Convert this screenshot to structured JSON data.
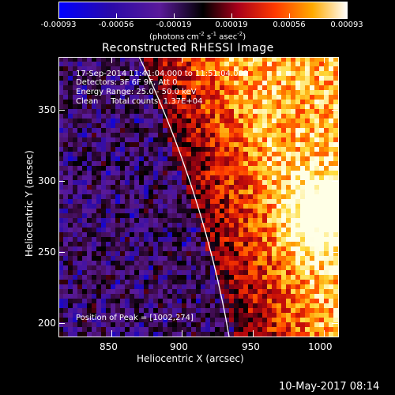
{
  "colorbar": {
    "labels": [
      "-0.00093",
      "-0.00056",
      "-0.00019",
      "0.00019",
      "0.00056",
      "0.00093"
    ],
    "unit_main": "(photons cm",
    "unit_exp1": "-2",
    "unit_mid1": " s",
    "unit_exp2": "-1",
    "unit_mid2": " asec",
    "unit_exp3": "-2",
    "unit_end": ")"
  },
  "title": "Reconstructed RHESSI Image",
  "annotations": {
    "line1": "17-Sep-2014 11:41:04.000 to 11:51:04.000",
    "line2": "Detectors: 3F 6F 9F, Att 0",
    "line3": "Energy Range: 25.0 - 50.0 keV",
    "line4": "Clean     Total counts: 1.37E+04",
    "peak": "Position of Peak = [1002,274]"
  },
  "x_axis": {
    "label": "Heliocentric X (arcsec)",
    "ticks": [
      "850",
      "900",
      "950",
      "1000"
    ]
  },
  "y_axis": {
    "label": "Heliocentric Y (arcsec)",
    "ticks": [
      "350",
      "300",
      "250",
      "200"
    ]
  },
  "footer_date": "10-May-2017 08:14"
}
